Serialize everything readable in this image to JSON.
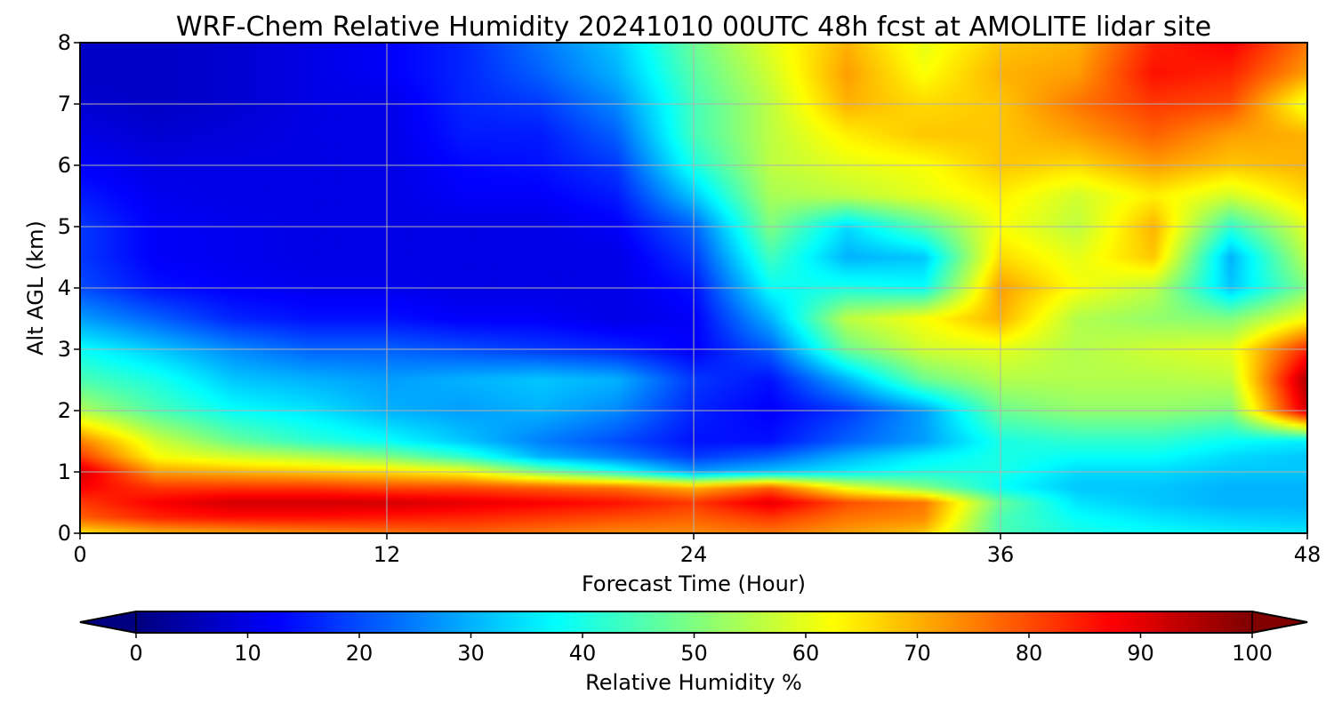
{
  "chart_data": {
    "type": "heatmap",
    "title": "WRF-Chem Relative Humidity 20241010 00UTC 48h fcst at AMOLITE lidar site",
    "xlabel": "Forecast Time (Hour)",
    "ylabel": "Alt AGL (km)",
    "xlim": [
      0,
      48
    ],
    "ylim": [
      0,
      8
    ],
    "x_ticks": [
      "0",
      "12",
      "24",
      "36",
      "48"
    ],
    "y_ticks": [
      "0",
      "1",
      "2",
      "3",
      "4",
      "5",
      "6",
      "7",
      "8"
    ],
    "grid": true,
    "colormap": "jet",
    "colorbar": {
      "label": "Relative Humidity %",
      "range": [
        0,
        100
      ],
      "ticks": [
        "0",
        "10",
        "20",
        "30",
        "40",
        "50",
        "60",
        "70",
        "80",
        "90",
        "100"
      ],
      "extend": "both",
      "orientation": "horizontal",
      "placement": "bottom"
    },
    "x": [
      0,
      3,
      6,
      9,
      12,
      15,
      18,
      21,
      24,
      27,
      30,
      33,
      36,
      39,
      42,
      45,
      48
    ],
    "y": [
      0,
      0.25,
      0.5,
      0.75,
      1,
      1.25,
      1.5,
      2,
      2.5,
      3,
      3.5,
      4,
      4.5,
      5,
      5.5,
      6,
      6.5,
      7,
      7.5,
      8
    ],
    "z": [
      [
        65,
        70,
        72,
        74,
        76,
        78,
        76,
        74,
        74,
        76,
        72,
        68,
        45,
        40,
        38,
        36,
        35
      ],
      [
        78,
        84,
        86,
        86,
        85,
        84,
        82,
        80,
        78,
        82,
        76,
        74,
        45,
        38,
        35,
        33,
        32
      ],
      [
        82,
        88,
        92,
        92,
        92,
        90,
        88,
        86,
        82,
        90,
        80,
        76,
        48,
        35,
        32,
        30,
        30
      ],
      [
        88,
        82,
        82,
        82,
        80,
        80,
        78,
        76,
        70,
        78,
        60,
        50,
        38,
        32,
        32,
        30,
        30
      ],
      [
        92,
        72,
        70,
        68,
        66,
        62,
        50,
        40,
        28,
        32,
        36,
        40,
        40,
        34,
        34,
        32,
        32
      ],
      [
        82,
        62,
        58,
        55,
        50,
        42,
        30,
        25,
        18,
        22,
        30,
        36,
        40,
        38,
        38,
        34,
        32
      ],
      [
        75,
        58,
        48,
        42,
        38,
        32,
        25,
        20,
        14,
        14,
        22,
        28,
        40,
        42,
        42,
        38,
        36
      ],
      [
        55,
        45,
        38,
        35,
        30,
        28,
        30,
        26,
        16,
        12,
        18,
        28,
        48,
        52,
        52,
        50,
        92
      ],
      [
        45,
        40,
        32,
        30,
        28,
        30,
        32,
        30,
        18,
        14,
        30,
        48,
        55,
        55,
        55,
        56,
        96
      ],
      [
        38,
        32,
        26,
        22,
        22,
        20,
        18,
        16,
        12,
        22,
        48,
        58,
        60,
        55,
        58,
        60,
        84
      ],
      [
        28,
        22,
        16,
        14,
        14,
        12,
        12,
        10,
        12,
        30,
        56,
        62,
        70,
        55,
        52,
        50,
        62
      ],
      [
        20,
        14,
        12,
        11,
        11,
        10,
        10,
        10,
        14,
        38,
        40,
        38,
        72,
        62,
        56,
        32,
        50
      ],
      [
        18,
        12,
        11,
        10,
        10,
        10,
        10,
        10,
        18,
        44,
        30,
        32,
        66,
        60,
        68,
        30,
        56
      ],
      [
        18,
        12,
        11,
        10,
        10,
        10,
        10,
        12,
        22,
        50,
        34,
        46,
        62,
        56,
        70,
        42,
        60
      ],
      [
        15,
        11,
        10,
        10,
        10,
        12,
        12,
        15,
        32,
        54,
        56,
        60,
        64,
        58,
        64,
        58,
        66
      ],
      [
        12,
        10,
        10,
        10,
        10,
        13,
        14,
        18,
        40,
        56,
        60,
        62,
        68,
        66,
        72,
        68,
        70
      ],
      [
        10,
        8,
        9,
        10,
        10,
        15,
        15,
        22,
        44,
        56,
        64,
        68,
        68,
        72,
        78,
        72,
        70
      ],
      [
        8,
        7,
        8,
        10,
        10,
        16,
        18,
        26,
        44,
        56,
        70,
        66,
        68,
        76,
        82,
        80,
        60
      ],
      [
        7,
        7,
        8,
        10,
        12,
        16,
        22,
        30,
        46,
        58,
        72,
        62,
        70,
        72,
        86,
        84,
        72
      ],
      [
        7,
        7,
        8,
        10,
        12,
        16,
        24,
        32,
        48,
        60,
        70,
        60,
        68,
        70,
        84,
        88,
        76
      ]
    ]
  }
}
